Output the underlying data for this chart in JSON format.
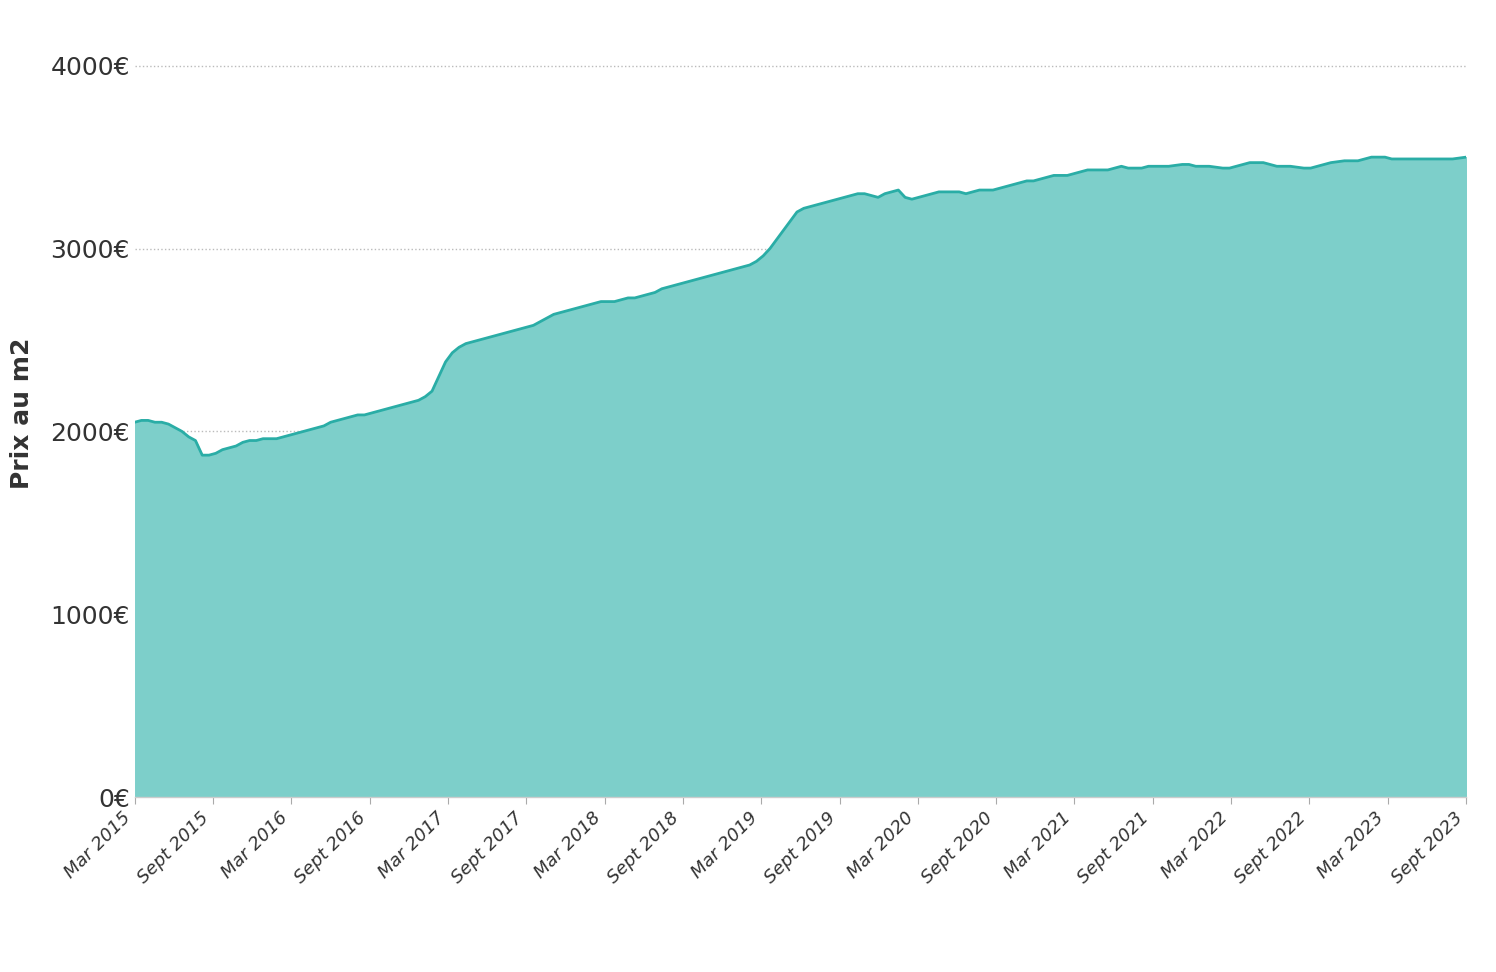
{
  "ylabel": "Prix au m2",
  "fill_color": "#7DCFCA",
  "line_color": "#2AADA6",
  "background_color": "#ffffff",
  "ylim": [
    0,
    4200
  ],
  "yticks": [
    0,
    1000,
    2000,
    3000,
    4000
  ],
  "ytick_labels": [
    "0€",
    "1000€",
    "2000€",
    "3000€",
    "4000€"
  ],
  "grid_color": "#bbbbbb",
  "tick_label_color": "#333333",
  "x_labels": [
    "Mar 2015",
    "Sept 2015",
    "Mar 2016",
    "Sept 2016",
    "Mar 2017",
    "Sept 2017",
    "Mar 2018",
    "Sept 2018",
    "Mar 2019",
    "Sept 2019",
    "Mar 2020",
    "Sept 2020",
    "Mar 2021",
    "Sept 2021",
    "Mar 2022",
    "Sept 2022",
    "Mar 2023",
    "Sept 2023"
  ],
  "prices_months": [
    2050,
    2060,
    2060,
    2050,
    2050,
    2040,
    2020,
    2000,
    1970,
    1950,
    1870,
    1870,
    1880,
    1900,
    1910,
    1920,
    1940,
    1950,
    1950,
    1960,
    1960,
    1960,
    1970,
    1980,
    1990,
    2000,
    2010,
    2020,
    2030,
    2050,
    2060,
    2070,
    2080,
    2090,
    2090,
    2100,
    2110,
    2120,
    2130,
    2140,
    2150,
    2160,
    2170,
    2190,
    2220,
    2300,
    2380,
    2430,
    2460,
    2480,
    2490,
    2500,
    2510,
    2520,
    2530,
    2540,
    2550,
    2560,
    2570,
    2580,
    2600,
    2620,
    2640,
    2650,
    2660,
    2670,
    2680,
    2690,
    2700,
    2710,
    2710,
    2710,
    2720,
    2730,
    2730,
    2740,
    2750,
    2760,
    2780,
    2790,
    2800,
    2810,
    2820,
    2830,
    2840,
    2850,
    2860,
    2870,
    2880,
    2890,
    2900,
    2910,
    2930,
    2960,
    3000,
    3050,
    3100,
    3150,
    3200,
    3220,
    3230,
    3240,
    3250,
    3260,
    3270,
    3280,
    3290,
    3300,
    3300,
    3290,
    3280,
    3300,
    3310,
    3320,
    3280,
    3270,
    3280,
    3290,
    3300,
    3310,
    3310,
    3310,
    3310,
    3300,
    3310,
    3320,
    3320,
    3320,
    3330,
    3340,
    3350,
    3360,
    3370,
    3370,
    3380,
    3390,
    3400,
    3400,
    3400,
    3410,
    3420,
    3430,
    3430,
    3430,
    3430,
    3440,
    3450,
    3440,
    3440,
    3440,
    3450,
    3450,
    3450,
    3450,
    3455,
    3460,
    3460,
    3450,
    3450,
    3450,
    3445,
    3440,
    3440,
    3450,
    3460,
    3470,
    3470,
    3470,
    3460,
    3450,
    3450,
    3450,
    3445,
    3440,
    3440,
    3450,
    3460,
    3470,
    3475,
    3480,
    3480,
    3480,
    3490,
    3500,
    3500,
    3500,
    3490,
    3490,
    3490,
    3490,
    3490,
    3490,
    3490,
    3490,
    3490,
    3490,
    3495,
    3500
  ]
}
